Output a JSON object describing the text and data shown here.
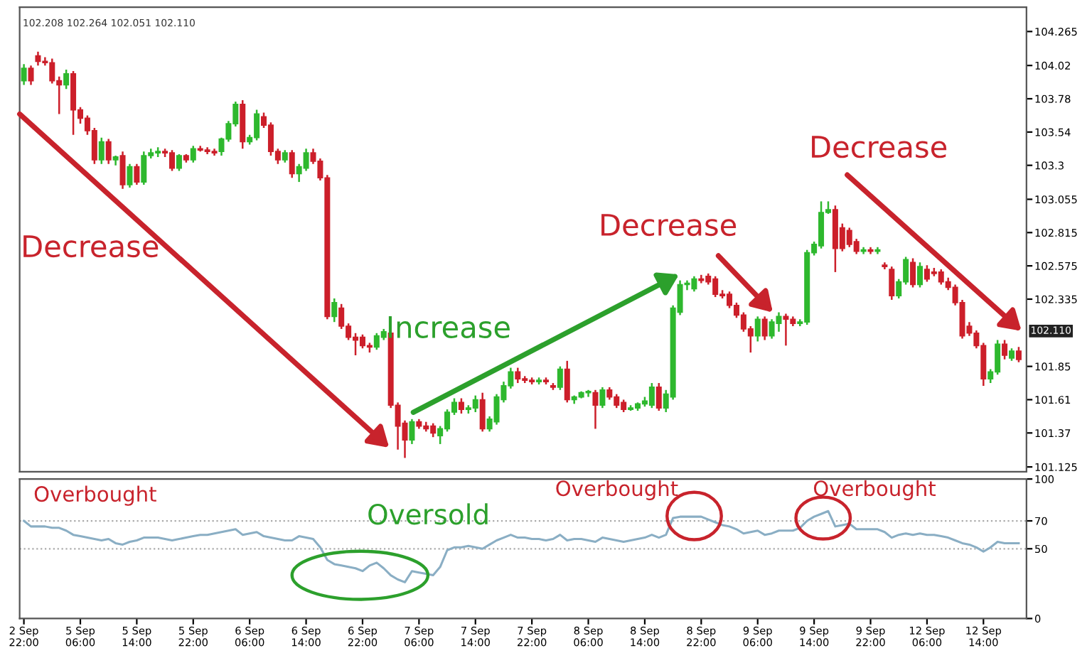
{
  "chart_data": [
    {
      "type": "candlestick",
      "categories": [
        null,
        null,
        null,
        null,
        null,
        null,
        null,
        null,
        null,
        null,
        null,
        null,
        null,
        null,
        null,
        null,
        null,
        null,
        null,
        null,
        null,
        null,
        null,
        null,
        null,
        null,
        null,
        null,
        null,
        null,
        null,
        null,
        null,
        null,
        null,
        null,
        null,
        null,
        null,
        null,
        null,
        null,
        null,
        null,
        null,
        null,
        null,
        null,
        null,
        null,
        null,
        null,
        null,
        null,
        null,
        null,
        null,
        null,
        null,
        null,
        null,
        null,
        null,
        null,
        null,
        null,
        null,
        null,
        null,
        null,
        null,
        null,
        null,
        null,
        null,
        null,
        null,
        null,
        null,
        null,
        null,
        null,
        null,
        null,
        null,
        null,
        null,
        null,
        null,
        null,
        null,
        null,
        null,
        null,
        null,
        null,
        null,
        null,
        null,
        null,
        null,
        null,
        null,
        null,
        null,
        null,
        null,
        null,
        null,
        null,
        null,
        null,
        null,
        null,
        null,
        null,
        null,
        null,
        null,
        null,
        null,
        null,
        null,
        null,
        null,
        null,
        null,
        null,
        null,
        null,
        null,
        null,
        null,
        null,
        null,
        null,
        null,
        null,
        null,
        null,
        null,
        null
      ],
      "ohlc": [
        [
          103.91,
          104.03,
          103.88,
          104.0
        ],
        [
          104.0,
          104.02,
          103.88,
          103.91
        ],
        [
          104.09,
          104.12,
          104.02,
          104.05
        ],
        [
          104.05,
          104.08,
          104.02,
          104.04
        ],
        [
          104.04,
          104.07,
          103.89,
          103.91
        ],
        [
          103.91,
          103.94,
          103.67,
          103.88
        ],
        [
          103.88,
          103.99,
          103.85,
          103.96
        ],
        [
          103.96,
          103.98,
          103.52,
          103.7
        ],
        [
          103.7,
          103.72,
          103.6,
          103.64
        ],
        [
          103.64,
          103.66,
          103.52,
          103.55
        ],
        [
          103.55,
          103.57,
          103.31,
          103.34
        ],
        [
          103.34,
          103.5,
          103.31,
          103.47
        ],
        [
          103.47,
          103.49,
          103.31,
          103.34
        ],
        [
          103.34,
          103.37,
          103.3,
          103.36
        ],
        [
          103.37,
          103.4,
          103.13,
          103.16
        ],
        [
          103.16,
          103.31,
          103.14,
          103.29
        ],
        [
          103.29,
          103.31,
          103.16,
          103.18
        ],
        [
          103.18,
          103.4,
          103.16,
          103.37
        ],
        [
          103.37,
          103.42,
          103.35,
          103.39
        ],
        [
          103.39,
          103.43,
          103.36,
          103.4
        ],
        [
          103.4,
          103.42,
          103.36,
          103.39
        ],
        [
          103.39,
          103.41,
          103.26,
          103.28
        ],
        [
          103.28,
          103.38,
          103.26,
          103.37
        ],
        [
          103.37,
          103.38,
          103.32,
          103.34
        ],
        [
          103.34,
          103.44,
          103.32,
          103.42
        ],
        [
          103.42,
          103.44,
          103.4,
          103.41
        ],
        [
          103.41,
          103.43,
          103.38,
          103.4
        ],
        [
          103.4,
          103.42,
          103.37,
          103.39
        ],
        [
          103.4,
          103.5,
          103.37,
          103.49
        ],
        [
          103.49,
          103.62,
          103.47,
          103.6
        ],
        [
          103.6,
          103.76,
          103.58,
          103.74
        ],
        [
          103.74,
          103.77,
          103.42,
          103.47
        ],
        [
          103.47,
          103.52,
          103.45,
          103.5
        ],
        [
          103.5,
          103.7,
          103.48,
          103.67
        ],
        [
          103.65,
          103.68,
          103.57,
          103.59
        ],
        [
          103.59,
          103.61,
          103.37,
          103.4
        ],
        [
          103.4,
          103.42,
          103.31,
          103.34
        ],
        [
          103.34,
          103.41,
          103.32,
          103.39
        ],
        [
          103.39,
          103.41,
          103.21,
          103.24
        ],
        [
          103.24,
          103.31,
          103.18,
          103.29
        ],
        [
          103.28,
          103.42,
          103.26,
          103.39
        ],
        [
          103.39,
          103.42,
          103.31,
          103.33
        ],
        [
          103.33,
          103.35,
          103.19,
          103.21
        ],
        [
          103.21,
          103.23,
          102.19,
          102.21
        ],
        [
          102.21,
          102.34,
          102.17,
          102.31
        ],
        [
          102.27,
          102.3,
          102.12,
          102.14
        ],
        [
          102.14,
          102.16,
          102.04,
          102.06
        ],
        [
          102.06,
          102.09,
          101.93,
          102.04
        ],
        [
          102.06,
          102.08,
          101.98,
          102.0
        ],
        [
          102.0,
          102.02,
          101.95,
          101.99
        ],
        [
          101.99,
          102.09,
          101.97,
          102.07
        ],
        [
          102.06,
          102.12,
          102.04,
          102.1
        ],
        [
          102.09,
          102.11,
          101.55,
          101.57
        ],
        [
          101.57,
          101.59,
          101.25,
          101.42
        ],
        [
          101.44,
          101.46,
          101.19,
          101.32
        ],
        [
          101.32,
          101.47,
          101.29,
          101.45
        ],
        [
          101.45,
          101.47,
          101.4,
          101.42
        ],
        [
          101.42,
          101.45,
          101.38,
          101.4
        ],
        [
          101.42,
          101.44,
          101.34,
          101.37
        ],
        [
          101.35,
          101.42,
          101.29,
          101.4
        ],
        [
          101.4,
          101.54,
          101.38,
          101.52
        ],
        [
          101.52,
          101.62,
          101.5,
          101.59
        ],
        [
          101.59,
          101.62,
          101.51,
          101.54
        ],
        [
          101.54,
          101.57,
          101.51,
          101.55
        ],
        [
          101.55,
          101.64,
          101.52,
          101.61
        ],
        [
          101.61,
          101.66,
          101.38,
          101.4
        ],
        [
          101.4,
          101.49,
          101.38,
          101.47
        ],
        [
          101.45,
          101.65,
          101.43,
          101.63
        ],
        [
          101.61,
          101.74,
          101.59,
          101.71
        ],
        [
          101.71,
          101.84,
          101.69,
          101.81
        ],
        [
          101.81,
          101.84,
          101.73,
          101.76
        ],
        [
          101.76,
          101.78,
          101.73,
          101.75
        ],
        [
          101.75,
          101.77,
          101.72,
          101.74
        ],
        [
          101.74,
          101.77,
          101.72,
          101.75
        ],
        [
          101.75,
          101.77,
          101.72,
          101.74
        ],
        [
          101.71,
          101.73,
          101.68,
          101.7
        ],
        [
          101.7,
          101.85,
          101.68,
          101.83
        ],
        [
          101.83,
          101.89,
          101.59,
          101.61
        ],
        [
          101.61,
          101.64,
          101.58,
          101.63
        ],
        [
          101.63,
          101.67,
          101.62,
          101.66
        ],
        [
          101.66,
          101.68,
          101.63,
          101.67
        ],
        [
          101.66,
          101.68,
          101.4,
          101.57
        ],
        [
          101.57,
          101.7,
          101.55,
          101.68
        ],
        [
          101.68,
          101.7,
          101.61,
          101.63
        ],
        [
          101.63,
          101.65,
          101.55,
          101.57
        ],
        [
          101.59,
          101.61,
          101.52,
          101.54
        ],
        [
          101.54,
          101.57,
          101.53,
          101.55
        ],
        [
          101.55,
          101.59,
          101.53,
          101.58
        ],
        [
          101.58,
          101.63,
          101.56,
          101.6
        ],
        [
          101.57,
          101.73,
          101.55,
          101.7
        ],
        [
          101.7,
          101.73,
          101.53,
          101.55
        ],
        [
          101.55,
          101.68,
          101.52,
          101.65
        ],
        [
          101.63,
          102.29,
          101.61,
          102.27
        ],
        [
          102.24,
          102.47,
          102.22,
          102.44
        ],
        [
          102.44,
          102.47,
          102.4,
          102.45
        ],
        [
          102.41,
          102.5,
          102.39,
          102.48
        ],
        [
          102.48,
          102.51,
          102.45,
          102.47
        ],
        [
          102.5,
          102.52,
          102.44,
          102.46
        ],
        [
          102.48,
          102.5,
          102.35,
          102.37
        ],
        [
          102.37,
          102.4,
          102.34,
          102.36
        ],
        [
          102.37,
          102.39,
          102.27,
          102.29
        ],
        [
          102.29,
          102.31,
          102.2,
          102.22
        ],
        [
          102.22,
          102.24,
          102.1,
          102.12
        ],
        [
          102.12,
          102.14,
          101.95,
          102.07
        ],
        [
          102.07,
          102.21,
          102.03,
          102.19
        ],
        [
          102.19,
          102.21,
          102.04,
          102.07
        ],
        [
          102.07,
          102.19,
          102.05,
          102.17
        ],
        [
          102.16,
          102.24,
          102.1,
          102.21
        ],
        [
          102.21,
          102.23,
          102.0,
          102.19
        ],
        [
          102.19,
          102.21,
          102.14,
          102.16
        ],
        [
          102.16,
          102.19,
          102.14,
          102.17
        ],
        [
          102.17,
          102.69,
          102.15,
          102.67
        ],
        [
          102.67,
          102.75,
          102.65,
          102.73
        ],
        [
          102.72,
          103.04,
          102.7,
          102.96
        ],
        [
          102.96,
          103.04,
          102.95,
          102.98
        ],
        [
          102.98,
          103.01,
          102.53,
          102.7
        ],
        [
          102.85,
          102.88,
          102.68,
          102.7
        ],
        [
          102.83,
          102.85,
          102.71,
          102.73
        ],
        [
          102.75,
          102.77,
          102.66,
          102.68
        ],
        [
          102.68,
          102.71,
          102.66,
          102.69
        ],
        [
          102.69,
          102.71,
          102.66,
          102.68
        ],
        [
          102.68,
          102.71,
          102.66,
          102.69
        ],
        [
          102.58,
          102.6,
          102.55,
          102.57
        ],
        [
          102.55,
          102.57,
          102.33,
          102.36
        ],
        [
          102.36,
          102.48,
          102.34,
          102.46
        ],
        [
          102.46,
          102.64,
          102.44,
          102.62
        ],
        [
          102.6,
          102.63,
          102.42,
          102.44
        ],
        [
          102.44,
          102.6,
          102.42,
          102.57
        ],
        [
          102.55,
          102.58,
          102.46,
          102.48
        ],
        [
          102.53,
          102.56,
          102.5,
          102.52
        ],
        [
          102.53,
          102.55,
          102.44,
          102.46
        ],
        [
          102.46,
          102.49,
          102.4,
          102.42
        ],
        [
          102.42,
          102.44,
          102.29,
          102.31
        ],
        [
          102.31,
          102.33,
          102.05,
          102.07
        ],
        [
          102.14,
          102.17,
          102.07,
          102.09
        ],
        [
          102.09,
          102.11,
          101.98,
          102.0
        ],
        [
          102.0,
          102.02,
          101.71,
          101.76
        ],
        [
          101.76,
          101.83,
          101.73,
          101.81
        ],
        [
          101.81,
          102.04,
          101.79,
          102.01
        ],
        [
          102.01,
          102.04,
          101.9,
          101.93
        ],
        [
          101.91,
          101.98,
          101.89,
          101.96
        ],
        [
          101.96,
          101.99,
          101.88,
          101.9
        ]
      ],
      "colors": [
        "#2eb82e",
        "#cc1f2a",
        "#cc1f2a",
        "#cc1f2a",
        "#cc1f2a",
        "#cc1f2a",
        "#2eb82e",
        "#cc1f2a",
        "#cc1f2a",
        "#cc1f2a",
        "#cc1f2a",
        "#2eb82e",
        "#cc1f2a",
        "#2eb82e",
        "#cc1f2a",
        "#2eb82e",
        "#cc1f2a",
        "#2eb82e",
        "#2eb82e",
        "#2eb82e",
        "#cc1f2a",
        "#cc1f2a",
        "#2eb82e",
        "#cc1f2a",
        "#2eb82e",
        "#cc1f2a",
        "#cc1f2a",
        "#cc1f2a",
        "#2eb82e",
        "#2eb82e",
        "#2eb82e",
        "#cc1f2a",
        "#2eb82e",
        "#2eb82e",
        "#cc1f2a",
        "#cc1f2a",
        "#cc1f2a",
        "#2eb82e",
        "#cc1f2a",
        "#2eb82e",
        "#2eb82e",
        "#cc1f2a",
        "#cc1f2a",
        "#cc1f2a",
        "#2eb82e",
        "#cc1f2a",
        "#cc1f2a",
        "#cc1f2a",
        "#cc1f2a",
        "#cc1f2a",
        "#2eb82e",
        "#2eb82e",
        "#cc1f2a",
        "#cc1f2a",
        "#cc1f2a",
        "#2eb82e",
        "#cc1f2a",
        "#cc1f2a",
        "#cc1f2a",
        "#2eb82e",
        "#2eb82e",
        "#2eb82e",
        "#cc1f2a",
        "#2eb82e",
        "#2eb82e",
        "#cc1f2a",
        "#2eb82e",
        "#2eb82e",
        "#2eb82e",
        "#2eb82e",
        "#cc1f2a",
        "#cc1f2a",
        "#cc1f2a",
        "#2eb82e",
        "#cc1f2a",
        "#cc1f2a",
        "#2eb82e",
        "#cc1f2a",
        "#2eb82e",
        "#2eb82e",
        "#2eb82e",
        "#cc1f2a",
        "#2eb82e",
        "#cc1f2a",
        "#cc1f2a",
        "#cc1f2a",
        "#2eb82e",
        "#2eb82e",
        "#2eb82e",
        "#2eb82e",
        "#cc1f2a",
        "#2eb82e",
        "#2eb82e",
        "#2eb82e",
        "#2eb82e",
        "#2eb82e",
        "#cc1f2a",
        "#cc1f2a",
        "#cc1f2a",
        "#cc1f2a",
        "#cc1f2a",
        "#cc1f2a",
        "#cc1f2a",
        "#cc1f2a",
        "#2eb82e",
        "#cc1f2a",
        "#2eb82e",
        "#2eb82e",
        "#cc1f2a",
        "#cc1f2a",
        "#2eb82e",
        "#2eb82e",
        "#2eb82e",
        "#2eb82e",
        "#2eb82e",
        "#cc1f2a",
        "#cc1f2a",
        "#cc1f2a",
        "#cc1f2a",
        "#2eb82e",
        "#cc1f2a",
        "#2eb82e",
        "#cc1f2a",
        "#cc1f2a",
        "#2eb82e",
        "#2eb82e",
        "#cc1f2a",
        "#2eb82e",
        "#cc1f2a",
        "#cc1f2a",
        "#cc1f2a",
        "#cc1f2a",
        "#cc1f2a",
        "#cc1f2a",
        "#cc1f2a",
        "#cc1f2a",
        "#cc1f2a",
        "#2eb82e",
        "#2eb82e",
        "#cc1f2a",
        "#2eb82e",
        "#cc1f2a"
      ],
      "ylim": [
        101.09,
        104.44
      ],
      "yticks": [
        101.125,
        101.37,
        101.61,
        101.85,
        102.335,
        102.575,
        102.815,
        103.055,
        103.3,
        103.54,
        103.78,
        104.02,
        104.265
      ],
      "tick_labels": "y",
      "grid": false,
      "annotations": [
        "102.208 102.264 102.051 102.110",
        "102.110",
        "Decrease",
        "Increase",
        "Decrease",
        "Decrease"
      ]
    },
    {
      "type": "line",
      "categories": [
        "2 Sep 22:00",
        null,
        null,
        null,
        null,
        null,
        null,
        null,
        "5 Sep 06:00",
        null,
        null,
        null,
        null,
        null,
        null,
        null,
        "5 Sep 14:00",
        null,
        null,
        null,
        null,
        null,
        null,
        null,
        "5 Sep 22:00",
        null,
        null,
        null,
        null,
        null,
        null,
        null,
        "6 Sep 06:00",
        null,
        null,
        null,
        null,
        null,
        null,
        null,
        "6 Sep 14:00",
        null,
        null,
        null,
        null,
        null,
        null,
        null,
        "6 Sep 22:00",
        null,
        null,
        null,
        null,
        null,
        null,
        null,
        "7 Sep 06:00",
        null,
        null,
        null,
        null,
        null,
        null,
        null,
        "7 Sep 14:00",
        null,
        null,
        null,
        null,
        null,
        null,
        null,
        "7 Sep 22:00",
        null,
        null,
        null,
        null,
        null,
        null,
        null,
        "8 Sep 06:00",
        null,
        null,
        null,
        null,
        null,
        null,
        null,
        "8 Sep 14:00",
        null,
        null,
        null,
        null,
        null,
        null,
        null,
        "8 Sep 22:00",
        null,
        null,
        null,
        null,
        null,
        null,
        null,
        "9 Sep 06:00",
        null,
        null,
        null,
        null,
        null,
        null,
        null,
        "9 Sep 14:00",
        null,
        null,
        null,
        null,
        null,
        null,
        null,
        "9 Sep 22:00",
        null,
        null,
        null,
        null,
        null,
        null,
        null,
        "12 Sep 06:00",
        null,
        null,
        null,
        null,
        null,
        null,
        null,
        "12 Sep 14:00",
        null,
        null,
        null,
        null,
        null
      ],
      "series": [
        {
          "color": "#8aaec4",
          "values": [
            70,
            66,
            66,
            66,
            65,
            65,
            63,
            60,
            59,
            58,
            57,
            56,
            57,
            54,
            53,
            55,
            56,
            58,
            58,
            58,
            57,
            56,
            57,
            58,
            59,
            60,
            60,
            61,
            62,
            63,
            64,
            60,
            61,
            62,
            59,
            58,
            57,
            56,
            56,
            59,
            58,
            57,
            51,
            42,
            39,
            38,
            37,
            36,
            34,
            38,
            40,
            36,
            31,
            28,
            26,
            34,
            33,
            32,
            31,
            37,
            49,
            51,
            51,
            52,
            51,
            50,
            53,
            56,
            58,
            60,
            58,
            58,
            57,
            57,
            56,
            57,
            60,
            56,
            57,
            57,
            56,
            55,
            58,
            57,
            56,
            55,
            56,
            57,
            58,
            60,
            58,
            60,
            72,
            73,
            73,
            73,
            73,
            71,
            69,
            67,
            66,
            64,
            61,
            62,
            63,
            60,
            61,
            63,
            63,
            63,
            65,
            70,
            73,
            75,
            77,
            66,
            67,
            68,
            64,
            64,
            64,
            64,
            62,
            58,
            60,
            61,
            60,
            61,
            60,
            60,
            59,
            58,
            56,
            54,
            53,
            51,
            48,
            51,
            55,
            54,
            54,
            54
          ]
        }
      ],
      "ylim": [
        0,
        100
      ],
      "yticks": [
        0,
        50,
        70,
        100
      ],
      "ref_lines": [
        {
          "axis": "y",
          "value": 70,
          "color": "#aaaaaa",
          "line_style": "dotted"
        },
        {
          "axis": "y",
          "value": 50,
          "color": "#aaaaaa",
          "line_style": "dotted"
        }
      ],
      "grid": false,
      "marker": "none",
      "line_style": "solid",
      "annotations": [
        "Overbought",
        "Oversold",
        "Overbought",
        "Overbought"
      ]
    }
  ]
}
